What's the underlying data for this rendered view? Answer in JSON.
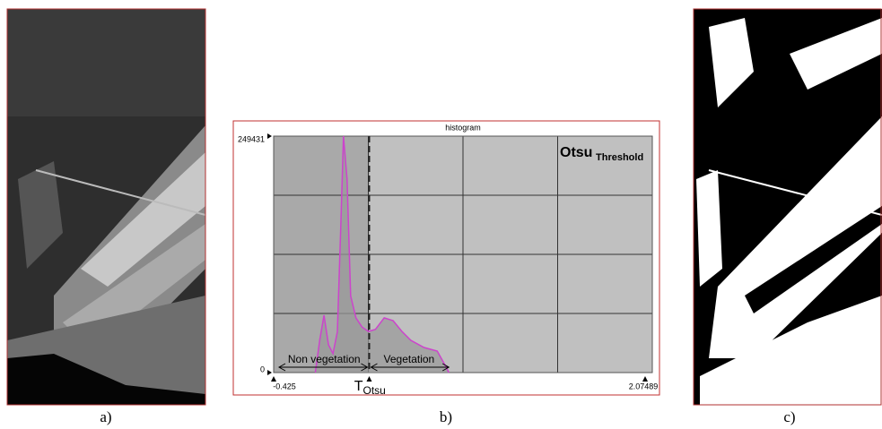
{
  "panels": {
    "a": {
      "caption": "a)"
    },
    "b": {
      "caption": "b)"
    },
    "c": {
      "caption": "c)"
    }
  },
  "chart_data": {
    "type": "area",
    "title": "histogram",
    "annotation": "Otsu",
    "annotation_subscript": "Threshold",
    "threshold": 0.218,
    "threshold_label": "T",
    "threshold_subscript": "Otsu",
    "regions": [
      "Non vegetation",
      "Vegetation"
    ],
    "x": [
      -0.145,
      -0.115,
      -0.086,
      -0.056,
      -0.026,
      0.004,
      0.027,
      0.045,
      0.069,
      0.093,
      0.129,
      0.17,
      0.212,
      0.259,
      0.319,
      0.379,
      0.438,
      0.498,
      0.587,
      0.676,
      0.736,
      0.754
    ],
    "values": [
      0,
      34000,
      60500,
      29300,
      20000,
      43000,
      157000,
      249431,
      204000,
      81000,
      57700,
      48000,
      43500,
      45400,
      57700,
      54800,
      43500,
      34000,
      26500,
      22700,
      5700,
      0
    ],
    "color": "#cc44cc",
    "xlim": [
      -0.425,
      2.07489
    ],
    "ylim": [
      0,
      249431
    ],
    "xticks": [
      -0.425,
      2.07489
    ],
    "yticks": [
      0,
      249431
    ]
  }
}
